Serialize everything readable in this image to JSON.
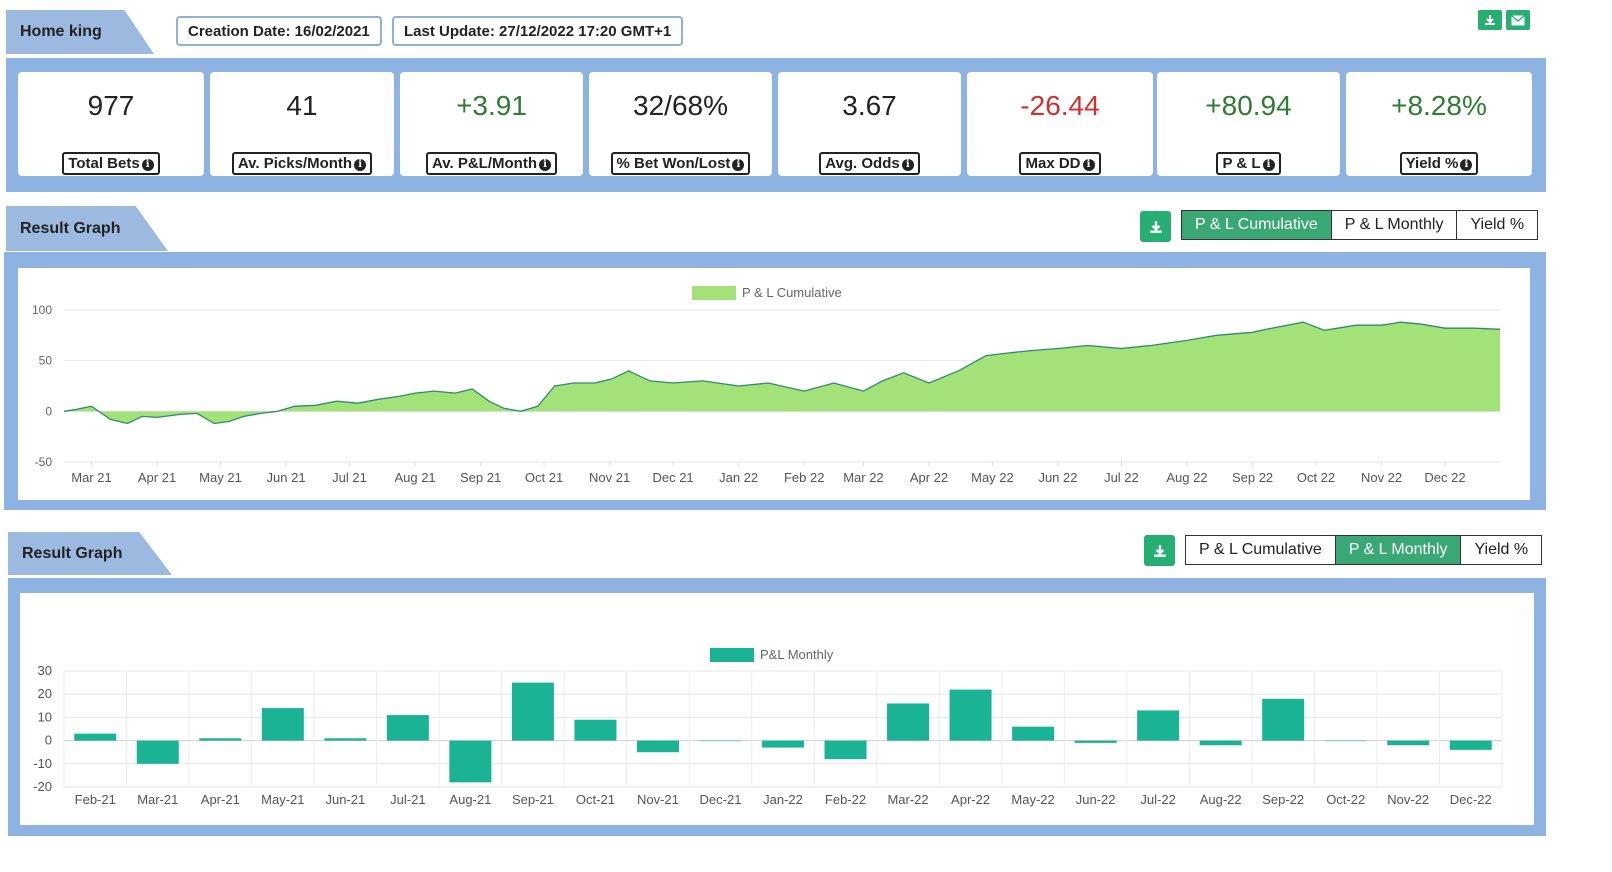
{
  "header": {
    "title": "Home king",
    "creation_date": "Creation Date: 16/02/2021",
    "last_update": "Last Update: 27/12/2022 17:20 GMT+1"
  },
  "top_icons": [
    "download-icon",
    "mail-icon"
  ],
  "stats": [
    {
      "value": "977",
      "label": "Total Bets",
      "color": "#222222"
    },
    {
      "value": "41",
      "label": "Av. Picks/Month",
      "color": "#222222"
    },
    {
      "value": "+3.91",
      "label": "Av. P&L/Month",
      "color": "#2e7d32"
    },
    {
      "value": "32/68%",
      "label": "% Bet Won/Lost",
      "color": "#222222"
    },
    {
      "value": "3.67",
      "label": "Avg. Odds",
      "color": "#222222"
    },
    {
      "value": "-26.44",
      "label": "Max DD",
      "color": "#d32f2f"
    },
    {
      "value": "+80.94",
      "label": "P & L",
      "color": "#2e7d32"
    },
    {
      "value": "+8.28%",
      "label": "Yield %",
      "color": "#2e7d32"
    }
  ],
  "section1": {
    "title": "Result Graph",
    "buttons": [
      "P & L Cumulative",
      "P & L Monthly",
      "Yield %"
    ],
    "active": 0
  },
  "section2": {
    "title": "Result Graph",
    "buttons": [
      "P & L Cumulative",
      "P & L Monthly",
      "Yield %"
    ],
    "active": 1
  },
  "colors": {
    "accent": "#27ae73",
    "band": "#8db3e2",
    "area_fill": "#a3e279",
    "area_line": "#2e8b6e",
    "bar": "#1ab394"
  },
  "chart_data": [
    {
      "type": "area",
      "series": [
        {
          "name": "P & L Cumulative"
        }
      ],
      "x_ticks": [
        "Mar 21",
        "Apr 21",
        "May 21",
        "Jun 21",
        "Jul 21",
        "Aug 21",
        "Sep 21",
        "Oct 21",
        "Nov 21",
        "Dec 21",
        "Jan 22",
        "Feb 22",
        "Mar 22",
        "Apr 22",
        "May 22",
        "Jun 22",
        "Jul 22",
        "Aug 22",
        "Sep 22",
        "Oct 22",
        "Nov 22",
        "Dec 22"
      ],
      "ylim": [
        -50,
        100
      ],
      "y_ticks": [
        100,
        50,
        0,
        -50
      ],
      "x": [
        "2021-02-16",
        "2021-02-22",
        "2021-03-01",
        "2021-03-10",
        "2021-03-18",
        "2021-03-25",
        "2021-04-01",
        "2021-04-12",
        "2021-04-20",
        "2021-04-28",
        "2021-05-05",
        "2021-05-12",
        "2021-05-20",
        "2021-05-28",
        "2021-06-05",
        "2021-06-15",
        "2021-06-25",
        "2021-07-05",
        "2021-07-15",
        "2021-07-25",
        "2021-08-01",
        "2021-08-10",
        "2021-08-20",
        "2021-08-28",
        "2021-09-05",
        "2021-09-12",
        "2021-09-20",
        "2021-09-28",
        "2021-10-06",
        "2021-10-15",
        "2021-10-25",
        "2021-11-02",
        "2021-11-10",
        "2021-11-20",
        "2021-12-01",
        "2021-12-15",
        "2022-01-01",
        "2022-01-15",
        "2022-02-01",
        "2022-02-15",
        "2022-03-01",
        "2022-03-10",
        "2022-03-20",
        "2022-04-01",
        "2022-04-15",
        "2022-04-28",
        "2022-05-10",
        "2022-05-20",
        "2022-06-01",
        "2022-06-15",
        "2022-07-01",
        "2022-07-15",
        "2022-08-01",
        "2022-08-15",
        "2022-09-01",
        "2022-09-10",
        "2022-09-25",
        "2022-10-05",
        "2022-10-20",
        "2022-11-01",
        "2022-11-10",
        "2022-11-20",
        "2022-12-01",
        "2022-12-15",
        "2022-12-27"
      ],
      "y": [
        0,
        2,
        5,
        -8,
        -12,
        -5,
        -6,
        -3,
        -2,
        -12,
        -10,
        -5,
        -2,
        0,
        5,
        6,
        10,
        8,
        12,
        15,
        18,
        20,
        18,
        22,
        10,
        3,
        0,
        5,
        25,
        28,
        28,
        32,
        40,
        30,
        28,
        30,
        25,
        28,
        20,
        28,
        20,
        30,
        38,
        28,
        40,
        55,
        58,
        60,
        62,
        65,
        62,
        65,
        70,
        75,
        78,
        82,
        88,
        80,
        85,
        85,
        88,
        86,
        82,
        82,
        81
      ]
    },
    {
      "type": "bar",
      "series": [
        {
          "name": "P&L Monthly"
        }
      ],
      "categories": [
        "Feb-21",
        "Mar-21",
        "Apr-21",
        "May-21",
        "Jun-21",
        "Jul-21",
        "Aug-21",
        "Sep-21",
        "Oct-21",
        "Nov-21",
        "Dec-21",
        "Jan-22",
        "Feb-22",
        "Mar-22",
        "Apr-22",
        "May-22",
        "Jun-22",
        "Jul-22",
        "Aug-22",
        "Sep-22",
        "Oct-22",
        "Nov-22",
        "Dec-22"
      ],
      "values": [
        3,
        -10,
        1,
        14,
        1,
        11,
        -18,
        25,
        9,
        -5,
        0,
        -3,
        -8,
        16,
        22,
        6,
        -1,
        13,
        -2,
        18,
        0,
        -2,
        -4
      ],
      "ylim": [
        -20,
        30
      ],
      "y_ticks": [
        30,
        20,
        10,
        0,
        -10,
        -20
      ]
    }
  ]
}
